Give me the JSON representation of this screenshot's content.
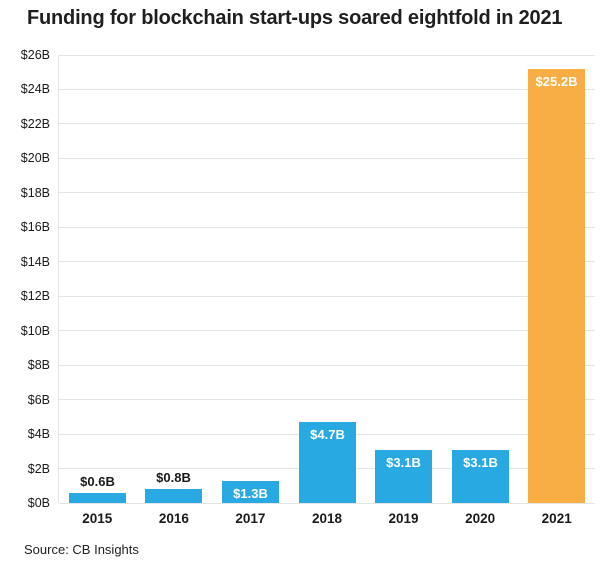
{
  "page": {
    "title": "Funding for blockchain start-ups soared eightfold in 2021",
    "source": "Source: CB Insights"
  },
  "chart_data": {
    "type": "bar",
    "title": "Funding for blockchain start-ups soared eightfold in 2021",
    "source": "Source: CB Insights",
    "categories": [
      "2015",
      "2016",
      "2017",
      "2018",
      "2019",
      "2020",
      "2021"
    ],
    "values": [
      0.6,
      0.8,
      1.3,
      4.7,
      3.1,
      3.1,
      25.2
    ],
    "value_labels": [
      "$0.6B",
      "$0.8B",
      "$1.3B",
      "$4.7B",
      "$3.1B",
      "$3.1B",
      "$25.2B"
    ],
    "xlabel": "",
    "ylabel": "",
    "ylim": [
      0,
      26
    ],
    "ytick_step": 2,
    "ytick_prefix": "$",
    "ytick_suffix": "B",
    "grid": true,
    "legend": false,
    "bar_color": "#29A9E1",
    "highlight_color": "#F9AE45",
    "highlight_index": 6,
    "label_inside": [
      false,
      false,
      true,
      true,
      true,
      true,
      true
    ],
    "label_color_above": "#1a1a1a",
    "label_color_inside": "#ffffff"
  }
}
